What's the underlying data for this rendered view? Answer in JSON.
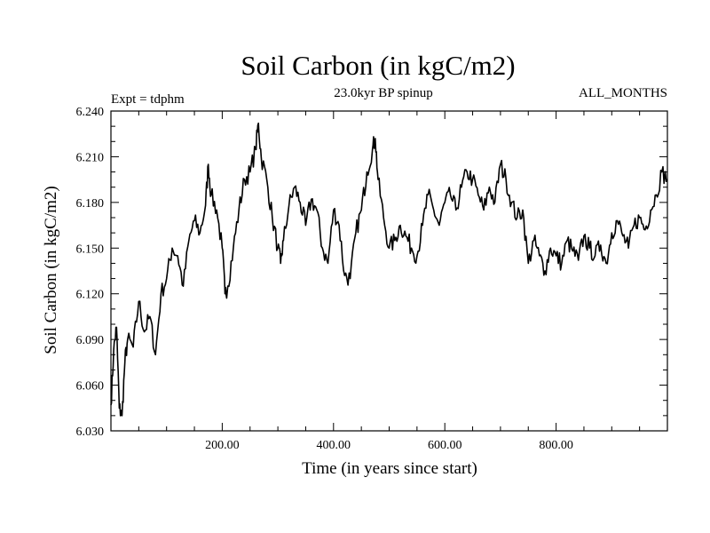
{
  "chart_data": {
    "type": "line",
    "title": "Soil Carbon (in kgC/m2)",
    "subtitle": "23.0kyr BP spinup",
    "left_note": "Expt = tdphm",
    "right_note": "ALL_MONTHS",
    "xlabel": "Time (in years since start)",
    "ylabel": "Soil Carbon (in kgC/m2)",
    "xlim": [
      0,
      1000
    ],
    "ylim": [
      6.03,
      6.24
    ],
    "xticks": [
      200,
      400,
      600,
      800
    ],
    "xtick_labels": [
      "200.00",
      "400.00",
      "600.00",
      "800.00"
    ],
    "yticks": [
      6.03,
      6.06,
      6.09,
      6.12,
      6.15,
      6.18,
      6.21,
      6.24
    ],
    "ytick_labels": [
      "6.030",
      "6.060",
      "6.090",
      "6.120",
      "6.150",
      "6.180",
      "6.210",
      "6.240"
    ],
    "series": [
      {
        "name": "Soil Carbon",
        "color": "#000000",
        "x": [
          0,
          5,
          10,
          15,
          20,
          25,
          30,
          40,
          50,
          60,
          70,
          80,
          90,
          100,
          110,
          120,
          130,
          140,
          150,
          160,
          170,
          175,
          180,
          190,
          200,
          205,
          210,
          220,
          230,
          240,
          250,
          260,
          265,
          270,
          280,
          290,
          300,
          305,
          310,
          320,
          330,
          340,
          350,
          360,
          370,
          380,
          390,
          400,
          410,
          420,
          430,
          440,
          450,
          460,
          470,
          475,
          480,
          490,
          500,
          510,
          520,
          530,
          540,
          550,
          560,
          570,
          580,
          590,
          600,
          610,
          620,
          630,
          640,
          650,
          660,
          670,
          680,
          690,
          700,
          710,
          720,
          730,
          740,
          750,
          760,
          770,
          780,
          790,
          800,
          810,
          820,
          830,
          840,
          850,
          860,
          870,
          880,
          890,
          900,
          910,
          920,
          930,
          940,
          950,
          960,
          970,
          980,
          990,
          1000
        ],
        "values": [
          6.047,
          6.083,
          6.098,
          6.045,
          6.04,
          6.075,
          6.09,
          6.085,
          6.115,
          6.095,
          6.105,
          6.08,
          6.12,
          6.13,
          6.15,
          6.145,
          6.125,
          6.155,
          6.168,
          6.16,
          6.178,
          6.205,
          6.185,
          6.175,
          6.15,
          6.12,
          6.125,
          6.15,
          6.175,
          6.195,
          6.2,
          6.215,
          6.232,
          6.21,
          6.195,
          6.17,
          6.15,
          6.14,
          6.155,
          6.178,
          6.19,
          6.18,
          6.165,
          6.182,
          6.175,
          6.15,
          6.14,
          6.175,
          6.165,
          6.132,
          6.13,
          6.16,
          6.175,
          6.2,
          6.215,
          6.222,
          6.195,
          6.17,
          6.15,
          6.155,
          6.165,
          6.158,
          6.15,
          6.145,
          6.165,
          6.185,
          6.175,
          6.165,
          6.18,
          6.185,
          6.175,
          6.19,
          6.2,
          6.195,
          6.185,
          6.175,
          6.19,
          6.18,
          6.205,
          6.195,
          6.18,
          6.17,
          6.175,
          6.14,
          6.155,
          6.145,
          6.135,
          6.15,
          6.145,
          6.14,
          6.155,
          6.148,
          6.142,
          6.158,
          6.15,
          6.145,
          6.152,
          6.14,
          6.16,
          6.168,
          6.158,
          6.15,
          6.165,
          6.17,
          6.162,
          6.175,
          6.185,
          6.2,
          6.195
        ]
      }
    ]
  }
}
